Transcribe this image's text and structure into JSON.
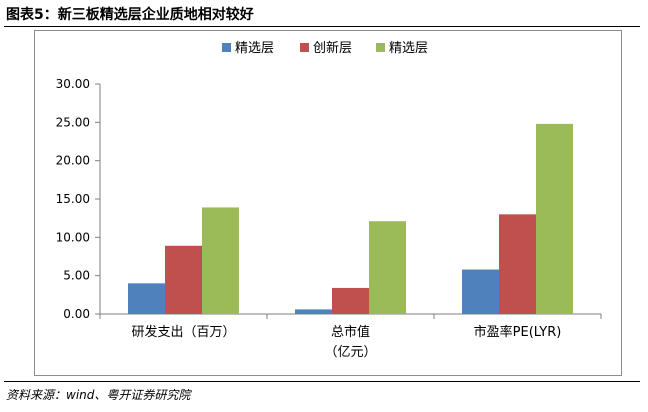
{
  "figure_title": "图表5：新三板精选层企业质地相对较好",
  "source": "资料来源：wind、粤开证券研究院",
  "chart_data": {
    "type": "bar",
    "categories": [
      [
        "研发支出（百万）"
      ],
      [
        "总市值",
        "（亿元）"
      ],
      [
        "市盈率PE(LYR)"
      ]
    ],
    "series": [
      {
        "name": "精选层",
        "color": "#4f81bd",
        "values": [
          4.0,
          0.6,
          5.8
        ]
      },
      {
        "name": "创新层",
        "color": "#c0504d",
        "values": [
          8.9,
          3.4,
          13.0
        ]
      },
      {
        "name": "精选层",
        "color": "#9bbb59",
        "values": [
          13.9,
          12.1,
          24.8
        ]
      }
    ],
    "ylim": [
      0,
      30
    ],
    "yticks": [
      "0.00",
      "5.00",
      "10.00",
      "15.00",
      "20.00",
      "25.00",
      "30.00"
    ],
    "grid": false,
    "legend_position": "top"
  }
}
